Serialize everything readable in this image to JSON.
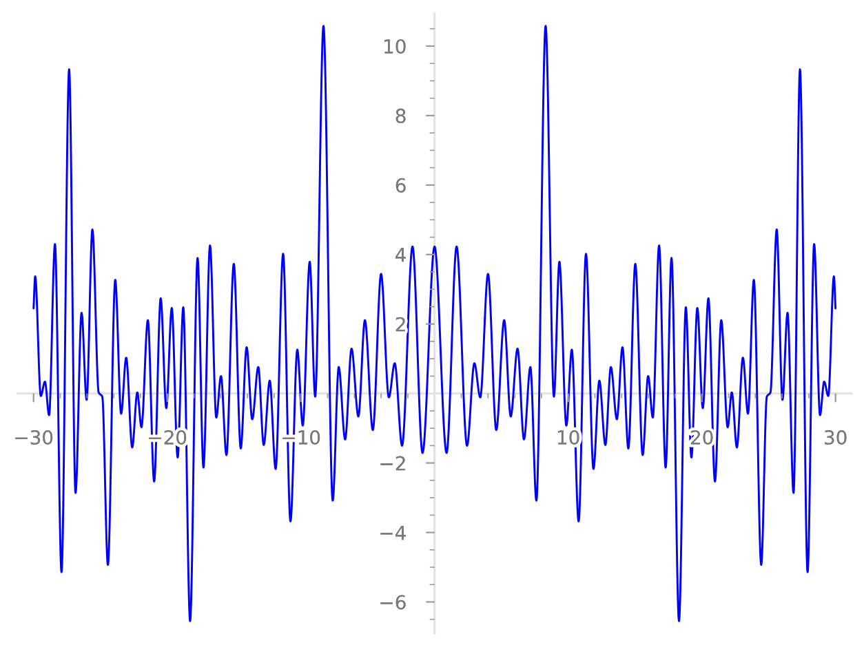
{
  "chart_data": {
    "type": "line",
    "x": [
      -30,
      -29.88,
      -29.46,
      -29.15,
      -28.84,
      -28.4,
      -27.91,
      -27.34,
      -26.86,
      -26.41,
      -26.03,
      -25.6,
      -25.13,
      -24.86,
      -24.44,
      -23.89,
      -23.45,
      -23.07,
      -22.62,
      -22.24,
      -21.93,
      -21.45,
      -20.98,
      -20.49,
      -20.07,
      -19.66,
      -19.22,
      -18.8,
      -18.29,
      -17.73,
      -17.29,
      -16.8,
      -16.33,
      -15.98,
      -15.57,
      -15.02,
      -14.5,
      -14.06,
      -13.64,
      -13.19,
      -12.78,
      -12.33,
      -11.89,
      -11.33,
      -10.78,
      -10.27,
      -9.86,
      -9.34,
      -8.93,
      -8.31,
      -7.62,
      -7.17,
      -6.69,
      -6.21,
      -5.7,
      -5.21,
      -4.62,
      -4.0,
      -3.42,
      -2.98,
      -2.43,
      -1.65,
      -0.9,
      0,
      0.9,
      1.65,
      2.43,
      2.98,
      3.42,
      4.0,
      4.62,
      5.21,
      5.7,
      6.21,
      6.69,
      7.17,
      7.62,
      8.31,
      8.93,
      9.34,
      9.86,
      10.27,
      10.78,
      11.33,
      11.89,
      12.33,
      12.78,
      13.19,
      13.64,
      14.06,
      14.5,
      15.02,
      15.57,
      15.98,
      16.33,
      16.8,
      17.29,
      17.73,
      18.29,
      18.8,
      19.22,
      19.66,
      20.07,
      20.49,
      20.98,
      21.45,
      21.93,
      22.24,
      22.62,
      23.07,
      23.45,
      23.89,
      24.44,
      24.86,
      25.13,
      25.6,
      26.03,
      26.41,
      26.86,
      27.34,
      27.91,
      28.4,
      28.84,
      29.15,
      29.46,
      29.88,
      30
    ],
    "series": [
      {
        "color": "#0000ff",
        "values": [
          2.45,
          3.37,
          -0.07,
          0.34,
          -0.62,
          4.3,
          -5.14,
          9.33,
          -2.86,
          2.32,
          -0.18,
          4.72,
          0.03,
          -0.09,
          -4.93,
          3.27,
          -0.58,
          1.03,
          -1.55,
          0.03,
          -0.97,
          2.11,
          -2.53,
          2.74,
          -0.42,
          2.46,
          -1.84,
          2.48,
          -6.55,
          3.9,
          -2.13,
          4.26,
          -0.69,
          0.5,
          -1.77,
          3.73,
          -1.58,
          1.33,
          -0.74,
          0.76,
          -1.48,
          0.37,
          -2.17,
          4.02,
          -3.68,
          1.26,
          -0.92,
          3.79,
          -0.09,
          10.58,
          -3.08,
          0.76,
          -1.32,
          1.29,
          -0.66,
          2.11,
          -1.05,
          3.44,
          -0.11,
          0.87,
          -1.5,
          4.23,
          -1.71,
          4.23,
          -1.71,
          4.23,
          -1.5,
          0.87,
          -0.11,
          3.44,
          -1.05,
          2.11,
          -0.66,
          1.29,
          -1.32,
          0.76,
          -3.08,
          10.58,
          -0.09,
          3.79,
          -0.92,
          1.26,
          -3.68,
          4.02,
          -2.17,
          0.37,
          -1.48,
          0.76,
          -0.74,
          1.33,
          -1.58,
          3.73,
          -1.77,
          0.5,
          -0.69,
          4.26,
          -2.13,
          3.9,
          -6.55,
          2.48,
          -1.84,
          2.46,
          -0.42,
          2.74,
          -2.53,
          2.11,
          -0.97,
          0.03,
          -1.55,
          1.03,
          -0.58,
          3.27,
          -4.93,
          -0.09,
          0.03,
          4.72,
          -0.18,
          2.32,
          -2.86,
          9.33,
          -5.14,
          4.3,
          -0.62,
          0.34,
          -0.07,
          3.37,
          2.45
        ]
      }
    ],
    "xlim": [
      -31.2,
      31.2
    ],
    "ylim": [
      -6.9,
      10.93
    ],
    "xticks": [
      {
        "value": -30,
        "label": "−30"
      },
      {
        "value": -20,
        "label": "−20"
      },
      {
        "value": -10,
        "label": "−10"
      },
      10,
      20,
      30,
      {
        "value": -28,
        "label": null
      },
      {
        "value": -26,
        "label": null
      },
      {
        "value": -24,
        "label": null
      },
      {
        "value": -22,
        "label": null
      },
      {
        "value": -18,
        "label": null
      },
      {
        "value": -16,
        "label": null
      },
      {
        "value": -14,
        "label": null
      },
      {
        "value": -12,
        "label": null
      },
      {
        "value": -8,
        "label": null
      },
      {
        "value": -6,
        "label": null
      },
      {
        "value": -4,
        "label": null
      },
      {
        "value": -2,
        "label": null
      },
      {
        "value": 2,
        "label": null
      },
      {
        "value": 4,
        "label": null
      },
      {
        "value": 6,
        "label": null
      },
      {
        "value": 8,
        "label": null
      },
      {
        "value": 12,
        "label": null
      },
      {
        "value": 14,
        "label": null
      },
      {
        "value": 16,
        "label": null
      },
      {
        "value": 18,
        "label": null
      },
      {
        "value": 22,
        "label": null
      },
      {
        "value": 24,
        "label": null
      },
      {
        "value": 26,
        "label": null
      },
      {
        "value": 28,
        "label": null
      }
    ],
    "yticks": [
      {
        "value": -6,
        "label": "−6"
      },
      {
        "value": -4,
        "label": "−4"
      },
      {
        "value": -2,
        "label": "−2"
      },
      2,
      4,
      6,
      8,
      10,
      {
        "value": -6.5,
        "label": null
      },
      {
        "value": -5.5,
        "label": null
      },
      {
        "value": -5,
        "label": null
      },
      {
        "value": -4.5,
        "label": null
      },
      {
        "value": -3.5,
        "label": null
      },
      {
        "value": -3,
        "label": null
      },
      {
        "value": -2.5,
        "label": null
      },
      {
        "value": -1.5,
        "label": null
      },
      {
        "value": -1,
        "label": null
      },
      {
        "value": -0.5,
        "label": null
      },
      {
        "value": 0.5,
        "label": null
      },
      {
        "value": 1,
        "label": null
      },
      {
        "value": 1.5,
        "label": null
      },
      {
        "value": 2.5,
        "label": null
      },
      {
        "value": 3,
        "label": null
      },
      {
        "value": 3.5,
        "label": null
      },
      {
        "value": 4.5,
        "label": null
      },
      {
        "value": 5,
        "label": null
      },
      {
        "value": 5.5,
        "label": null
      },
      {
        "value": 6.5,
        "label": null
      },
      {
        "value": 7,
        "label": null
      },
      {
        "value": 7.5,
        "label": null
      },
      {
        "value": 8.5,
        "label": null
      },
      {
        "value": 9,
        "label": null
      },
      {
        "value": 9.5,
        "label": null
      },
      {
        "value": 10.5,
        "label": null
      }
    ],
    "grid": false,
    "marker": "none",
    "line_style": "solid"
  }
}
